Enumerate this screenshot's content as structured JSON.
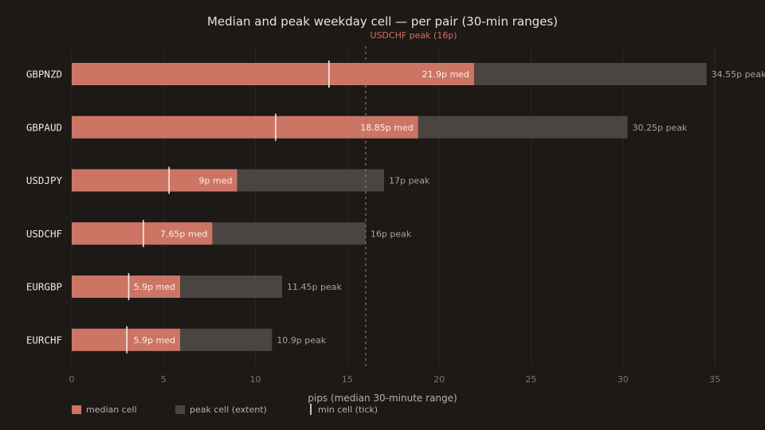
{
  "colors": {
    "background": "#1c1917",
    "median": "#cd7565",
    "peak": "#4a4540",
    "tick": "#f3ede6",
    "reference": "#a26b61",
    "grid": "#2b2724"
  },
  "chart_data": {
    "type": "bar",
    "orientation": "horizontal",
    "title": "Median and peak weekday cell — per pair (30-min ranges)",
    "xlabel": "pips (median 30-minute range)",
    "xlim": [
      0,
      35
    ],
    "xticks": [
      0,
      5,
      10,
      15,
      20,
      25,
      30,
      35
    ],
    "grid": true,
    "categories": [
      "GBPNZD",
      "GBPAUD",
      "USDJPY",
      "USDCHF",
      "EURGBP",
      "EURCHF"
    ],
    "series": [
      {
        "name": "median cell",
        "values": [
          21.9,
          18.85,
          9,
          7.65,
          5.9,
          5.9
        ],
        "labels": [
          "21.9p med",
          "18.85p med",
          "9p med",
          "7.65p med",
          "5.9p med",
          "5.9p med"
        ]
      },
      {
        "name": "peak cell (extent)",
        "values": [
          34.55,
          30.25,
          17,
          16,
          11.45,
          10.9
        ],
        "labels": [
          "34.55p peak",
          "30.25p peak",
          "17p peak",
          "16p peak",
          "11.45p peak",
          "10.9p peak"
        ]
      },
      {
        "name": "min cell (tick)",
        "values": [
          14,
          11.1,
          5.3,
          3.9,
          3.1,
          3.0
        ]
      }
    ],
    "reference_line": {
      "value": 16,
      "label": "USDCHF peak (16p)"
    },
    "legend": {
      "position": "bottom-left",
      "items": [
        "median cell",
        "peak cell (extent)",
        "min cell (tick)"
      ]
    }
  }
}
